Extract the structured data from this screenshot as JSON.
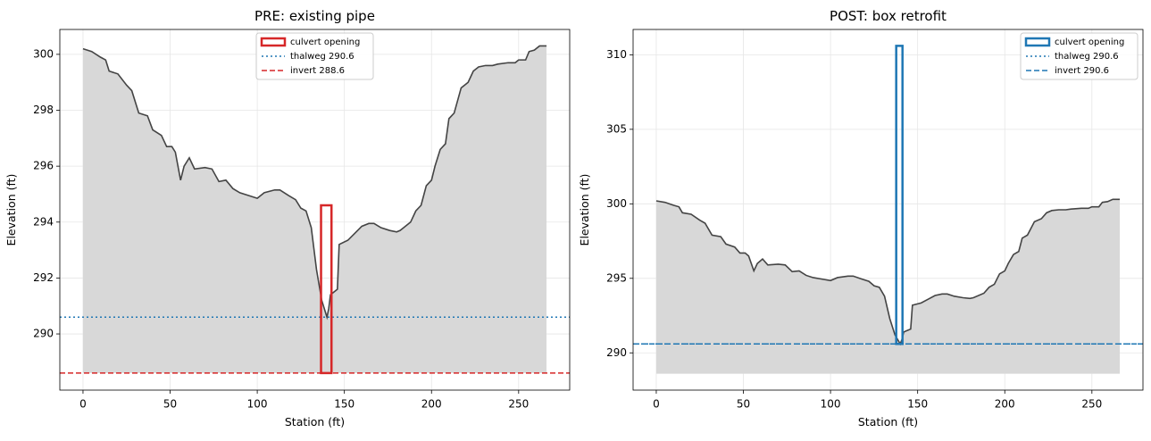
{
  "chart_data": [
    {
      "type": "area",
      "title": "PRE: existing pipe",
      "xlabel": "Station (ft)",
      "ylabel": "Elevation (ft)",
      "x": [
        0,
        5,
        10,
        13,
        15,
        20,
        25,
        28,
        32,
        37,
        40,
        45,
        48,
        51,
        53,
        56,
        58,
        61,
        64,
        70,
        74,
        78,
        82,
        86,
        90,
        95,
        100,
        104,
        110,
        113,
        118,
        122,
        125,
        128,
        131,
        134,
        137,
        140,
        141,
        142,
        146,
        147,
        152,
        156,
        160,
        164,
        167,
        171,
        176,
        180,
        182,
        188,
        191,
        194,
        197,
        200,
        202,
        205,
        208,
        210,
        213,
        217,
        221,
        224,
        227,
        231,
        235,
        238,
        244,
        248,
        250,
        254,
        256,
        259,
        262,
        266
      ],
      "values": [
        300.2,
        300.1,
        299.9,
        299.8,
        299.4,
        299.3,
        298.9,
        298.7,
        297.9,
        297.8,
        297.3,
        297.1,
        296.7,
        296.7,
        296.5,
        295.5,
        296.0,
        296.3,
        295.9,
        295.95,
        295.9,
        295.45,
        295.5,
        295.2,
        295.05,
        294.95,
        294.85,
        295.05,
        295.15,
        295.15,
        294.95,
        294.8,
        294.5,
        294.4,
        293.8,
        292.3,
        291.2,
        290.6,
        290.9,
        291.4,
        291.6,
        293.2,
        293.35,
        293.6,
        293.85,
        293.95,
        293.95,
        293.8,
        293.7,
        293.65,
        293.7,
        294.0,
        294.4,
        294.6,
        295.3,
        295.5,
        296.0,
        296.6,
        296.8,
        297.7,
        297.9,
        298.8,
        299.0,
        299.4,
        299.55,
        299.6,
        299.6,
        299.65,
        299.7,
        299.7,
        299.8,
        299.8,
        300.1,
        300.15,
        300.3,
        300.3
      ],
      "color": "#444444",
      "fill_color": "#d8d8d8",
      "fill_base": 288.6,
      "culvert": {
        "name": "culvert opening",
        "x": [
          136.6,
          142.6
        ],
        "y": [
          288.6,
          294.6
        ],
        "color": "#d62728"
      },
      "hlines": [
        {
          "name": "thalweg 290.6",
          "value": 290.6,
          "color": "#1f77b4",
          "style": "dotted"
        },
        {
          "name": "invert 288.6",
          "value": 288.6,
          "color": "#d62728",
          "style": "dashed"
        }
      ],
      "xlim": [
        -13.3,
        279.3
      ],
      "xticks": [
        0,
        50,
        100,
        150,
        200,
        250
      ],
      "ylim": [
        287.99,
        300.89
      ],
      "yticks": [
        290,
        292,
        294,
        296,
        298,
        300
      ],
      "grid": true,
      "legend": "upper center"
    },
    {
      "type": "area",
      "title": "POST: box retrofit",
      "xlabel": "Station (ft)",
      "ylabel": "Elevation (ft)",
      "x": [
        0,
        5,
        10,
        13,
        15,
        20,
        25,
        28,
        32,
        37,
        40,
        45,
        48,
        51,
        53,
        56,
        58,
        61,
        64,
        70,
        74,
        78,
        82,
        86,
        90,
        95,
        100,
        104,
        110,
        113,
        118,
        122,
        125,
        128,
        131,
        134,
        137,
        140,
        141,
        142,
        146,
        147,
        152,
        156,
        160,
        164,
        167,
        171,
        176,
        180,
        182,
        188,
        191,
        194,
        197,
        200,
        202,
        205,
        208,
        210,
        213,
        217,
        221,
        224,
        227,
        231,
        235,
        238,
        244,
        248,
        250,
        254,
        256,
        259,
        262,
        266
      ],
      "values": [
        300.2,
        300.1,
        299.9,
        299.8,
        299.4,
        299.3,
        298.9,
        298.7,
        297.9,
        297.8,
        297.3,
        297.1,
        296.7,
        296.7,
        296.5,
        295.5,
        296.0,
        296.3,
        295.9,
        295.95,
        295.9,
        295.45,
        295.5,
        295.2,
        295.05,
        294.95,
        294.85,
        295.05,
        295.15,
        295.15,
        294.95,
        294.8,
        294.5,
        294.4,
        293.8,
        292.3,
        291.2,
        290.6,
        290.9,
        291.4,
        291.6,
        293.2,
        293.35,
        293.6,
        293.85,
        293.95,
        293.95,
        293.8,
        293.7,
        293.65,
        293.7,
        294.0,
        294.4,
        294.6,
        295.3,
        295.5,
        296.0,
        296.6,
        296.8,
        297.7,
        297.9,
        298.8,
        299.0,
        299.4,
        299.55,
        299.6,
        299.6,
        299.65,
        299.7,
        299.7,
        299.8,
        299.8,
        300.1,
        300.15,
        300.3,
        300.3
      ],
      "color": "#444444",
      "fill_color": "#d8d8d8",
      "fill_base": 288.6,
      "culvert": {
        "name": "culvert opening",
        "x": [
          137.7,
          141.3
        ],
        "y": [
          290.6,
          310.6
        ],
        "color": "#1f77b4"
      },
      "hlines": [
        {
          "name": "thalweg 290.6",
          "value": 290.6,
          "color": "#1f77b4",
          "style": "dotted"
        },
        {
          "name": "invert 290.6",
          "value": 290.6,
          "color": "#1f77b4",
          "style": "dashed"
        }
      ],
      "xlim": [
        -13.3,
        279.3
      ],
      "xticks": [
        0,
        50,
        100,
        150,
        200,
        250
      ],
      "ylim": [
        287.5,
        311.7
      ],
      "yticks": [
        290,
        295,
        300,
        305,
        310
      ],
      "grid": true,
      "legend": "upper right"
    }
  ]
}
